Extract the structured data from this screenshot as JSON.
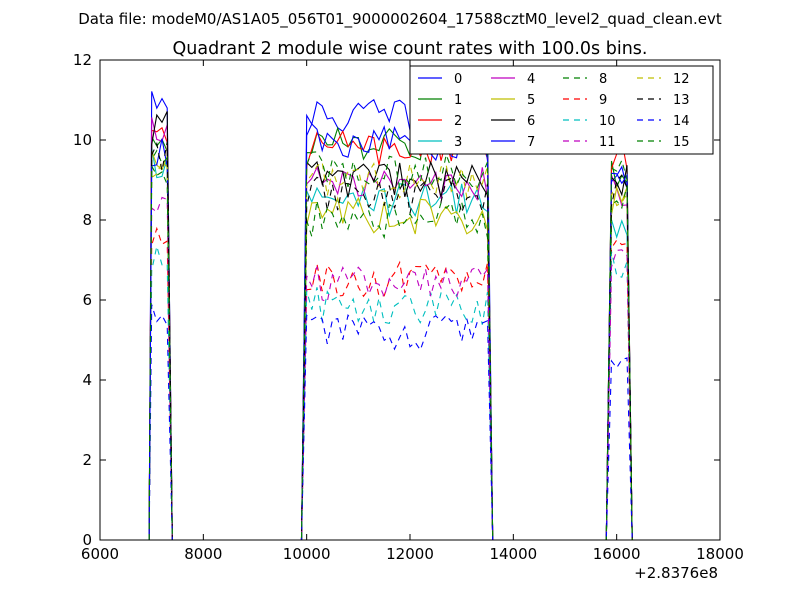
{
  "suptitle": "Data file: modeM0/AS1A05_056T01_9000002604_17588cztM0_level2_quad_clean.evt",
  "chart_data": {
    "type": "line",
    "title": "Quadrant 2 module wise count rates with 100.0s bins.",
    "xlim": [
      6000,
      18000
    ],
    "ylim": [
      0,
      12
    ],
    "x_ticks": [
      "6000",
      "8000",
      "10000",
      "12000",
      "14000",
      "16000",
      "18000"
    ],
    "y_ticks": [
      "0",
      "2",
      "4",
      "6",
      "8",
      "10",
      "12"
    ],
    "x_offset_label": "+2.8376e8",
    "grid": false,
    "legend_position": "top-right",
    "segments": [
      [
        7000,
        7300
      ],
      [
        10000,
        13500
      ],
      [
        15900,
        16200
      ]
    ],
    "series": [
      {
        "name": "0",
        "color": "#0000ff",
        "dash": "solid",
        "levels": [
          11.1,
          10.6,
          9.0
        ]
      },
      {
        "name": "1",
        "color": "#008000",
        "dash": "solid",
        "levels": [
          9.9,
          9.9,
          9.2
        ]
      },
      {
        "name": "2",
        "color": "#ff0000",
        "dash": "solid",
        "levels": [
          10.0,
          9.8,
          9.6
        ]
      },
      {
        "name": "3",
        "color": "#00bfbf",
        "dash": "solid",
        "levels": [
          9.5,
          8.5,
          8.0
        ]
      },
      {
        "name": "4",
        "color": "#bf00bf",
        "dash": "solid",
        "levels": [
          10.2,
          8.9,
          8.8
        ]
      },
      {
        "name": "5",
        "color": "#bfbf00",
        "dash": "solid",
        "levels": [
          9.3,
          8.1,
          8.4
        ]
      },
      {
        "name": "6",
        "color": "#000000",
        "dash": "solid",
        "levels": [
          10.3,
          9.0,
          9.0
        ]
      },
      {
        "name": "7",
        "color": "#0000ff",
        "dash": "solid",
        "levels": [
          9.7,
          9.9,
          8.8
        ]
      },
      {
        "name": "8",
        "color": "#008000",
        "dash": "dashed",
        "levels": [
          9.8,
          8.0,
          8.6
        ]
      },
      {
        "name": "9",
        "color": "#ff0000",
        "dash": "dashed",
        "levels": [
          7.6,
          6.5,
          7.2
        ]
      },
      {
        "name": "10",
        "color": "#00bfbf",
        "dash": "dashed",
        "levels": [
          6.9,
          5.8,
          6.8
        ]
      },
      {
        "name": "11",
        "color": "#bf00bf",
        "dash": "dashed",
        "levels": [
          8.4,
          6.4,
          7.0
        ]
      },
      {
        "name": "12",
        "color": "#bfbf00",
        "dash": "dashed",
        "levels": [
          9.1,
          9.0,
          8.6
        ]
      },
      {
        "name": "13",
        "color": "#000000",
        "dash": "dashed",
        "levels": [
          9.6,
          8.6,
          8.8
        ]
      },
      {
        "name": "14",
        "color": "#0000ff",
        "dash": "dashed",
        "levels": [
          5.8,
          5.2,
          4.6
        ]
      },
      {
        "name": "15",
        "color": "#008000",
        "dash": "dashed",
        "levels": [
          9.2,
          9.2,
          9.1
        ]
      }
    ]
  }
}
